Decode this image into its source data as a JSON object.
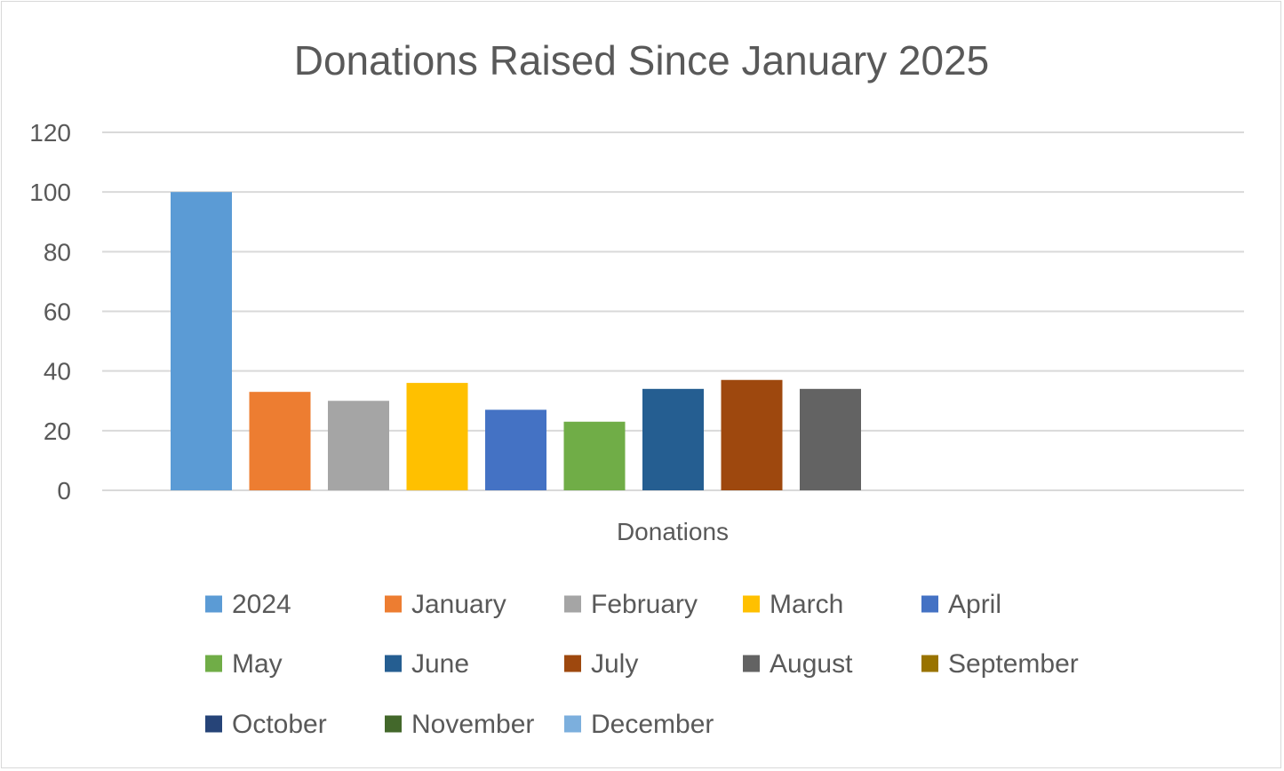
{
  "chart_data": {
    "type": "bar",
    "title": "Donations Raised Since January 2025",
    "xlabel": "Donations",
    "ylabel": "",
    "ylim": [
      0,
      120
    ],
    "yticks": [
      "0",
      "20",
      "40",
      "60",
      "80",
      "100",
      "120"
    ],
    "ytick_values": [
      0,
      20,
      40,
      60,
      80,
      100,
      120
    ],
    "grid": true,
    "legend_position": "bottom",
    "categories": [
      "Donations"
    ],
    "series": [
      {
        "name": "2024",
        "values": [
          100
        ],
        "color": "#5b9bd5"
      },
      {
        "name": "January",
        "values": [
          33
        ],
        "color": "#ed7d31"
      },
      {
        "name": "February",
        "values": [
          30
        ],
        "color": "#a5a5a5"
      },
      {
        "name": "March",
        "values": [
          36
        ],
        "color": "#ffc000"
      },
      {
        "name": "April",
        "values": [
          27
        ],
        "color": "#4472c4"
      },
      {
        "name": "May",
        "values": [
          23
        ],
        "color": "#70ad47"
      },
      {
        "name": "June",
        "values": [
          34
        ],
        "color": "#255e91"
      },
      {
        "name": "July",
        "values": [
          37
        ],
        "color": "#9e480e"
      },
      {
        "name": "August",
        "values": [
          34
        ],
        "color": "#636363"
      },
      {
        "name": "September",
        "values": [
          0
        ],
        "color": "#997300"
      },
      {
        "name": "October",
        "values": [
          0
        ],
        "color": "#264478"
      },
      {
        "name": "November",
        "values": [
          0
        ],
        "color": "#43682b"
      },
      {
        "name": "December",
        "values": [
          0
        ],
        "color": "#7cafdd"
      }
    ]
  }
}
